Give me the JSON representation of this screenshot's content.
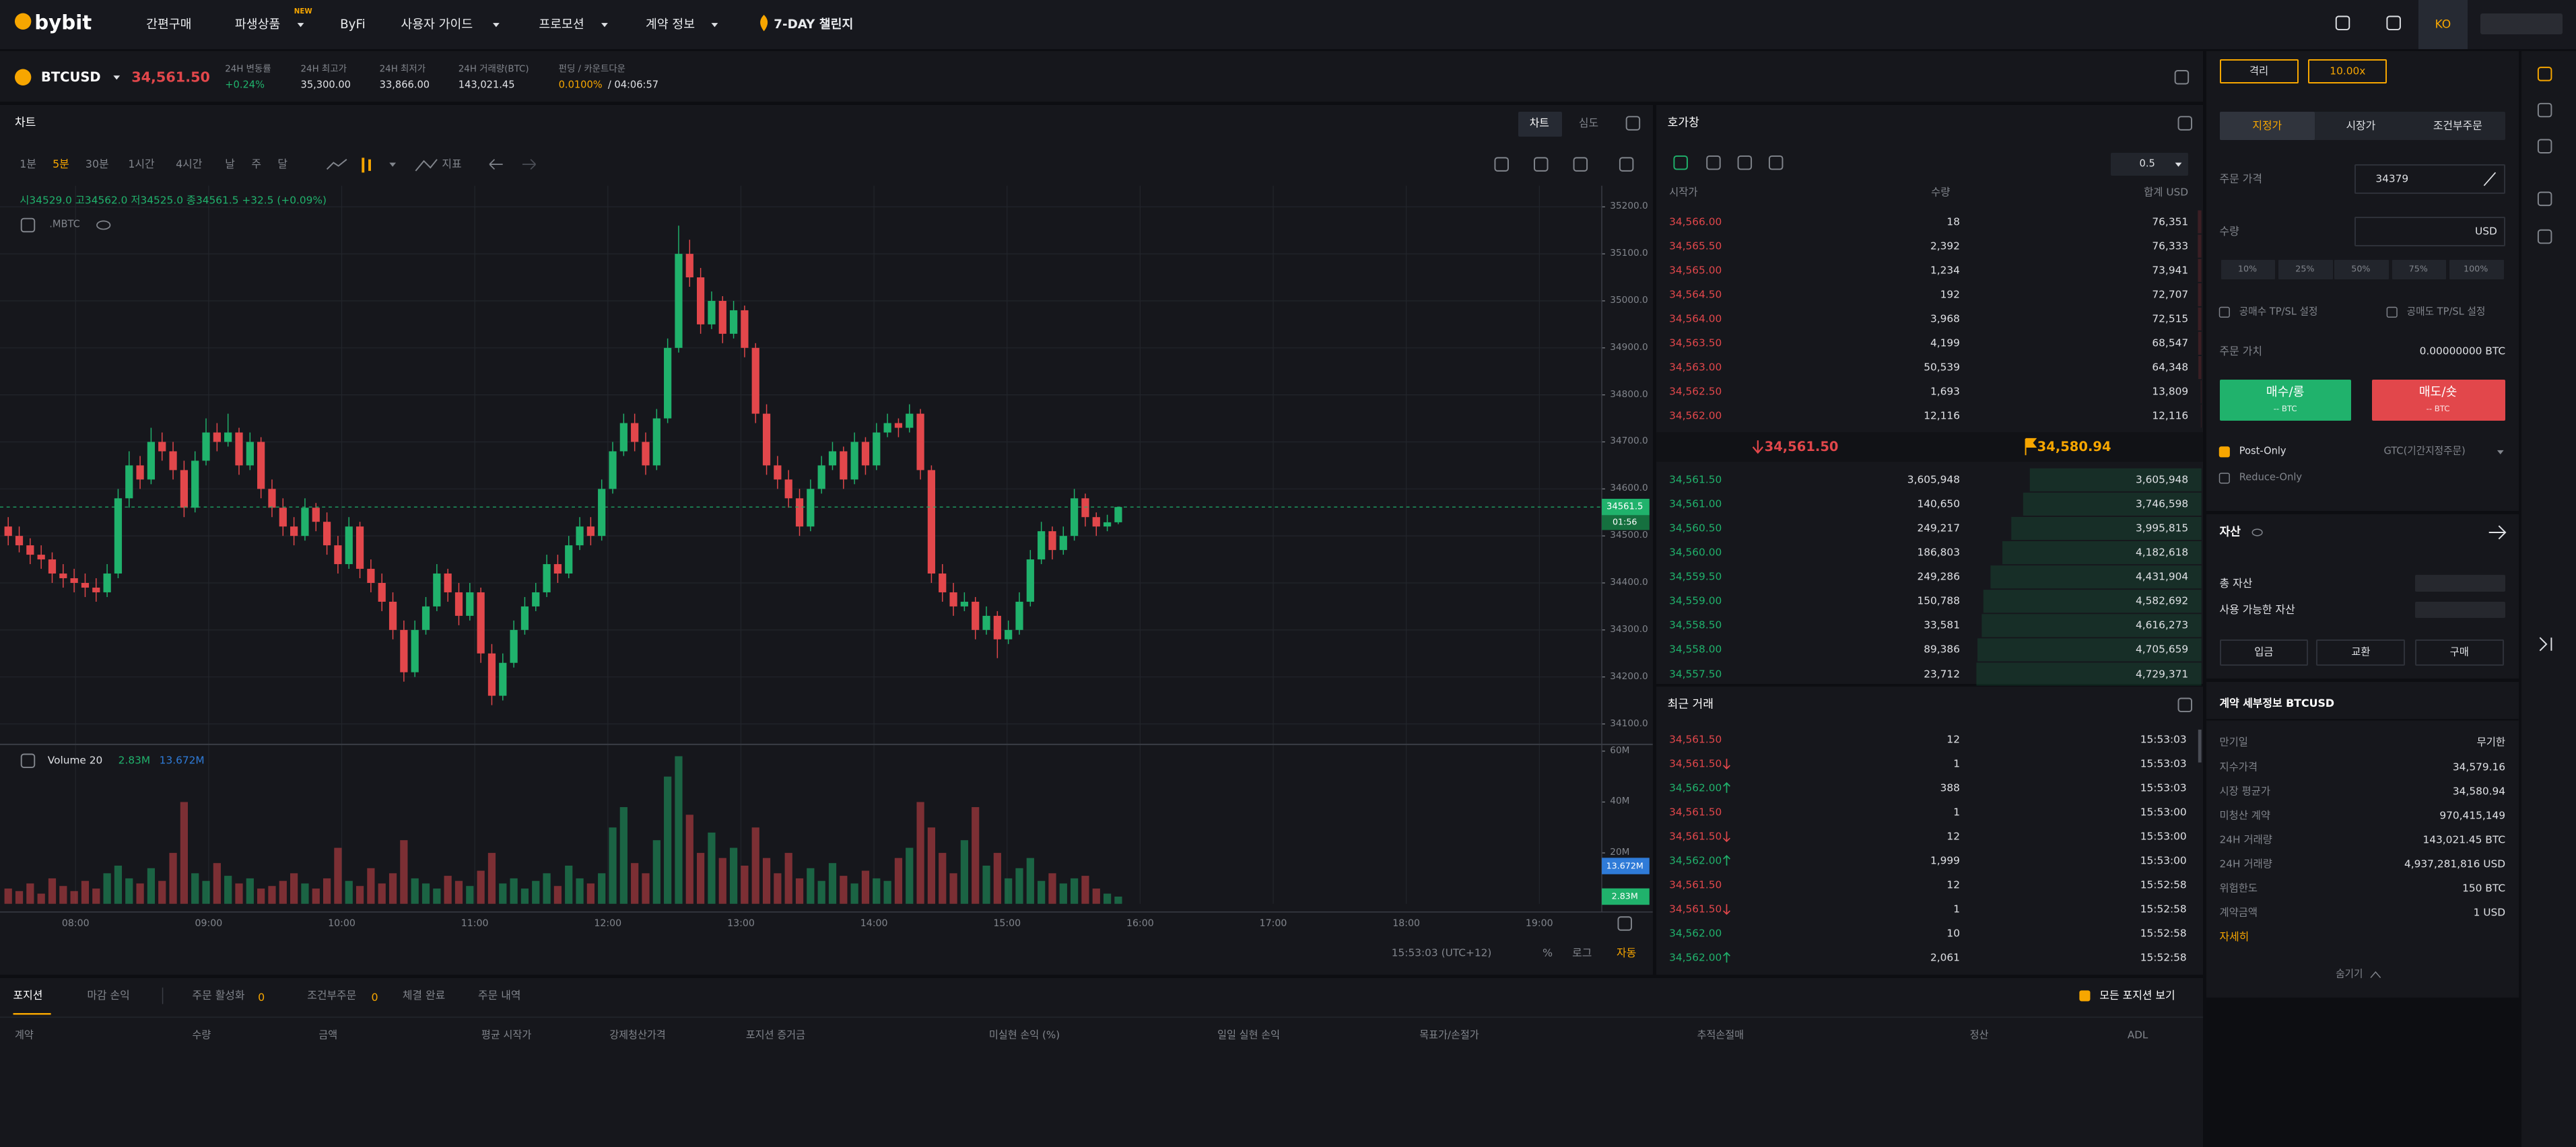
{
  "nav": {
    "logo": "bybit",
    "items": [
      "간편구매",
      "파생상품",
      "ByFi",
      "사용자 가이드",
      "프로모션",
      "계약 정보",
      "7-DAY 챌린지"
    ],
    "badge": "NEW",
    "language": "KO"
  },
  "ticker": {
    "symbol": "BTCUSD",
    "price": "34,561.50",
    "stats": [
      {
        "label": "24H 변동률",
        "value": "+0.24%"
      },
      {
        "label": "24H 최고가",
        "value": "35,300.00"
      },
      {
        "label": "24H 최저가",
        "value": "33,866.00"
      },
      {
        "label": "24H 거래량(BTC)",
        "value": "143,021.45"
      },
      {
        "label": "펀딩 / 카운트다운",
        "value": "0.0100%",
        "value2": "/ 04:06:57"
      }
    ]
  },
  "chart_panel": {
    "title": "차트",
    "tabs": [
      "차트",
      "심도"
    ],
    "intervals": [
      "1분",
      "5분",
      "30분",
      "1시간",
      "4시간",
      "날",
      "주",
      "달"
    ],
    "indicator": "지표",
    "time": "15:53:03 (UTC+12)",
    "scale_options": [
      "%",
      "로그",
      "자동"
    ]
  },
  "chart_data": {
    "type": "candlestick",
    "legend": "시34529.0 고34562.0 저34525.0 종34561.5 +32.5 (+0.09%)",
    "series_label": ".MBTC",
    "up_color": "#20b26c",
    "down_color": "#e2474b",
    "grid": true,
    "candles": [
      [
        34520,
        34540,
        34480,
        34500
      ],
      [
        34500,
        34520,
        34465,
        34480
      ],
      [
        34480,
        34495,
        34440,
        34460
      ],
      [
        34460,
        34480,
        34430,
        34450
      ],
      [
        34450,
        34465,
        34400,
        34420
      ],
      [
        34420,
        34440,
        34390,
        34410
      ],
      [
        34410,
        34430,
        34380,
        34400
      ],
      [
        34400,
        34420,
        34370,
        34390
      ],
      [
        34390,
        34410,
        34360,
        34380
      ],
      [
        34380,
        34440,
        34370,
        34420
      ],
      [
        34420,
        34600,
        34410,
        34580
      ],
      [
        34580,
        34680,
        34560,
        34650
      ],
      [
        34650,
        34670,
        34600,
        34620
      ],
      [
        34620,
        34730,
        34610,
        34700
      ],
      [
        34700,
        34720,
        34660,
        34680
      ],
      [
        34680,
        34700,
        34620,
        34640
      ],
      [
        34640,
        34660,
        34540,
        34560
      ],
      [
        34560,
        34680,
        34550,
        34660
      ],
      [
        34660,
        34750,
        34650,
        34720
      ],
      [
        34720,
        34740,
        34680,
        34700
      ],
      [
        34700,
        34760,
        34690,
        34720
      ],
      [
        34720,
        34730,
        34630,
        34650
      ],
      [
        34650,
        34720,
        34640,
        34700
      ],
      [
        34700,
        34710,
        34580,
        34600
      ],
      [
        34600,
        34620,
        34540,
        34560
      ],
      [
        34560,
        34580,
        34500,
        34520
      ],
      [
        34520,
        34540,
        34480,
        34500
      ],
      [
        34500,
        34580,
        34490,
        34560
      ],
      [
        34560,
        34570,
        34510,
        34530
      ],
      [
        34530,
        34550,
        34460,
        34480
      ],
      [
        34480,
        34500,
        34420,
        34440
      ],
      [
        34440,
        34540,
        34430,
        34520
      ],
      [
        34520,
        34530,
        34410,
        34430
      ],
      [
        34430,
        34450,
        34380,
        34400
      ],
      [
        34400,
        34420,
        34340,
        34360
      ],
      [
        34360,
        34380,
        34280,
        34300
      ],
      [
        34300,
        34320,
        34190,
        34210
      ],
      [
        34210,
        34320,
        34200,
        34300
      ],
      [
        34300,
        34370,
        34290,
        34350
      ],
      [
        34350,
        34440,
        34340,
        34420
      ],
      [
        34420,
        34430,
        34360,
        34380
      ],
      [
        34380,
        34400,
        34310,
        34330
      ],
      [
        34330,
        34400,
        34320,
        34380
      ],
      [
        34380,
        34390,
        34230,
        34250
      ],
      [
        34250,
        34270,
        34140,
        34160
      ],
      [
        34160,
        34250,
        34150,
        34230
      ],
      [
        34230,
        34320,
        34220,
        34300
      ],
      [
        34300,
        34370,
        34290,
        34350
      ],
      [
        34350,
        34400,
        34340,
        34380
      ],
      [
        34380,
        34460,
        34370,
        34440
      ],
      [
        34440,
        34460,
        34400,
        34420
      ],
      [
        34420,
        34500,
        34410,
        34480
      ],
      [
        34480,
        34540,
        34470,
        34520
      ],
      [
        34520,
        34540,
        34480,
        34500
      ],
      [
        34500,
        34620,
        34490,
        34600
      ],
      [
        34600,
        34700,
        34590,
        34680
      ],
      [
        34680,
        34760,
        34670,
        34740
      ],
      [
        34740,
        34760,
        34680,
        34700
      ],
      [
        34700,
        34720,
        34630,
        34650
      ],
      [
        34650,
        34770,
        34640,
        34750
      ],
      [
        34750,
        34920,
        34740,
        34900
      ],
      [
        34900,
        35160,
        34890,
        35100
      ],
      [
        35100,
        35130,
        35030,
        35050
      ],
      [
        35050,
        35070,
        34930,
        34950
      ],
      [
        34950,
        35020,
        34940,
        35000
      ],
      [
        35000,
        35010,
        34910,
        34930
      ],
      [
        34930,
        35000,
        34920,
        34980
      ],
      [
        34980,
        34990,
        34880,
        34900
      ],
      [
        34900,
        34910,
        34740,
        34760
      ],
      [
        34760,
        34780,
        34630,
        34650
      ],
      [
        34650,
        34670,
        34600,
        34620
      ],
      [
        34620,
        34640,
        34560,
        34580
      ],
      [
        34580,
        34600,
        34500,
        34520
      ],
      [
        34520,
        34620,
        34510,
        34600
      ],
      [
        34600,
        34670,
        34590,
        34650
      ],
      [
        34650,
        34700,
        34640,
        34680
      ],
      [
        34680,
        34690,
        34600,
        34620
      ],
      [
        34620,
        34720,
        34610,
        34700
      ],
      [
        34700,
        34710,
        34630,
        34650
      ],
      [
        34650,
        34740,
        34640,
        34720
      ],
      [
        34720,
        34760,
        34710,
        34740
      ],
      [
        34740,
        34750,
        34710,
        34730
      ],
      [
        34730,
        34780,
        34720,
        34760
      ],
      [
        34760,
        34770,
        34620,
        34640
      ],
      [
        34640,
        34650,
        34400,
        34420
      ],
      [
        34420,
        34440,
        34360,
        34380
      ],
      [
        34380,
        34400,
        34330,
        34350
      ],
      [
        34350,
        34380,
        34340,
        34360
      ],
      [
        34360,
        34370,
        34280,
        34300
      ],
      [
        34300,
        34350,
        34290,
        34330
      ],
      [
        34330,
        34340,
        34240,
        34280
      ],
      [
        34280,
        34320,
        34270,
        34300
      ],
      [
        34300,
        34380,
        34290,
        34360
      ],
      [
        34360,
        34470,
        34350,
        34450
      ],
      [
        34450,
        34530,
        34440,
        34510
      ],
      [
        34510,
        34520,
        34450,
        34470
      ],
      [
        34470,
        34520,
        34460,
        34500
      ],
      [
        34500,
        34600,
        34490,
        34580
      ],
      [
        34580,
        34590,
        34520,
        34540
      ],
      [
        34540,
        34550,
        34500,
        34520
      ],
      [
        34520,
        34545,
        34510,
        34529
      ],
      [
        34529,
        34562,
        34525,
        34561.5
      ]
    ],
    "ylim": [
      34060,
      35245
    ],
    "yticks": [
      {
        "value": 35200,
        "label": "35200.0"
      },
      {
        "value": 35100,
        "label": "35100.0"
      },
      {
        "value": 35000,
        "label": "35000.0"
      },
      {
        "value": 34900,
        "label": "34900.0"
      },
      {
        "value": 34800,
        "label": "34800.0"
      },
      {
        "value": 34700,
        "label": "34700.0"
      },
      {
        "value": 34600,
        "label": "34600.0"
      },
      {
        "value": 34500,
        "label": "34500.0"
      },
      {
        "value": 34400,
        "label": "34400.0"
      },
      {
        "value": 34300,
        "label": "34300.0"
      },
      {
        "value": 34200,
        "label": "34200.0"
      },
      {
        "value": 34100,
        "label": "34100.0"
      }
    ],
    "xticks": [
      "08:00",
      "09:00",
      "10:00",
      "11:00",
      "12:00",
      "13:00",
      "14:00",
      "15:00",
      "16:00",
      "17:00",
      "18:00",
      "19:00"
    ],
    "price_tag": "34561.5",
    "countdown": "01:56",
    "volume": {
      "legend": "Volume 20",
      "value_label": "2.83M",
      "ma_label": "13.672M",
      "ma_color": "#2f7bd8",
      "values": [
        6,
        5,
        8,
        4,
        10,
        7,
        5,
        9,
        6,
        12,
        15,
        10,
        8,
        14,
        9,
        20,
        40,
        12,
        9,
        16,
        11,
        8,
        10,
        6,
        7,
        9,
        12,
        8,
        6,
        10,
        22,
        9,
        7,
        14,
        8,
        12,
        25,
        10,
        8,
        6,
        11,
        9,
        7,
        13,
        20,
        8,
        10,
        6,
        9,
        12,
        7,
        15,
        10,
        8,
        12,
        30,
        38,
        16,
        12,
        25,
        50,
        58,
        35,
        20,
        28,
        18,
        22,
        15,
        30,
        18,
        12,
        20,
        10,
        14,
        9,
        16,
        11,
        8,
        13,
        10,
        9,
        18,
        22,
        40,
        30,
        20,
        12,
        25,
        38,
        15,
        20,
        10,
        14,
        18,
        9,
        12,
        8,
        10,
        11,
        6,
        4,
        2.83
      ],
      "ylim": [
        0,
        62
      ],
      "yticks": [
        {
          "value": 60,
          "label": "60M"
        },
        {
          "value": 40,
          "label": "40M"
        },
        {
          "value": 20,
          "label": "20M"
        }
      ]
    }
  },
  "order_book": {
    "title": "호가창",
    "step": "0.5",
    "headers": [
      "시작가",
      "수량",
      "합계 USD"
    ],
    "asks": [
      [
        "34,566.00",
        "18",
        "76,351"
      ],
      [
        "34,565.50",
        "2,392",
        "76,333"
      ],
      [
        "34,565.00",
        "1,234",
        "73,941"
      ],
      [
        "34,564.50",
        "192",
        "72,707"
      ],
      [
        "34,564.00",
        "3,968",
        "72,515"
      ],
      [
        "34,563.50",
        "4,199",
        "68,547"
      ],
      [
        "34,563.00",
        "50,539",
        "64,348"
      ],
      [
        "34,562.50",
        "1,693",
        "13,809"
      ],
      [
        "34,562.00",
        "12,116",
        "12,116"
      ]
    ],
    "bids": [
      [
        "34,561.50",
        "3,605,948",
        "3,605,948"
      ],
      [
        "34,561.00",
        "140,650",
        "3,746,598"
      ],
      [
        "34,560.50",
        "249,217",
        "3,995,815"
      ],
      [
        "34,560.00",
        "186,803",
        "4,182,618"
      ],
      [
        "34,559.50",
        "249,286",
        "4,431,904"
      ],
      [
        "34,559.00",
        "150,788",
        "4,582,692"
      ],
      [
        "34,558.50",
        "33,581",
        "4,616,273"
      ],
      [
        "34,558.00",
        "89,386",
        "4,705,659"
      ],
      [
        "34,557.50",
        "23,712",
        "4,729,371"
      ]
    ],
    "last_price": "34,561.50",
    "mark_price": "34,580.94"
  },
  "recent_trades": {
    "title": "최근 거래",
    "rows": [
      {
        "price": "34,561.50",
        "qty": "12",
        "time": "15:53:03",
        "side": "sell",
        "arrow": "none"
      },
      {
        "price": "34,561.50",
        "qty": "1",
        "time": "15:53:03",
        "side": "sell",
        "arrow": "down"
      },
      {
        "price": "34,562.00",
        "qty": "388",
        "time": "15:53:03",
        "side": "buy",
        "arrow": "up"
      },
      {
        "price": "34,561.50",
        "qty": "1",
        "time": "15:53:00",
        "side": "sell",
        "arrow": "none"
      },
      {
        "price": "34,561.50",
        "qty": "12",
        "time": "15:53:00",
        "side": "sell",
        "arrow": "down"
      },
      {
        "price": "34,562.00",
        "qty": "1,999",
        "time": "15:53:00",
        "side": "buy",
        "arrow": "up"
      },
      {
        "price": "34,561.50",
        "qty": "12",
        "time": "15:52:58",
        "side": "sell",
        "arrow": "none"
      },
      {
        "price": "34,561.50",
        "qty": "1",
        "time": "15:52:58",
        "side": "sell",
        "arrow": "down"
      },
      {
        "price": "34,562.00",
        "qty": "10",
        "time": "15:52:58",
        "side": "buy",
        "arrow": "none"
      },
      {
        "price": "34,562.00",
        "qty": "2,061",
        "time": "15:52:58",
        "side": "buy",
        "arrow": "up"
      }
    ]
  },
  "positions": {
    "tabs": [
      {
        "label": "포지션"
      },
      {
        "label": "마감 손익"
      },
      {
        "label": "주문 활성화",
        "count": 0
      },
      {
        "label": "조건부주문",
        "count": 0
      },
      {
        "label": "체결 완료"
      },
      {
        "label": "주문 내역"
      }
    ],
    "show_all": "모든 포지션 보기",
    "columns": [
      "계약",
      "수량",
      "금액",
      "평균 시작가",
      "강제청산가격",
      "포지션 증거금",
      "미실현 손익 (%)",
      "일일 실현 손익",
      "목표가/손절가",
      "추적손절매",
      "정산",
      "ADL"
    ]
  },
  "order_form": {
    "margin_mode": "격리",
    "leverage": "10.00x",
    "tabs": [
      "지정가",
      "시장가",
      "조건부주문"
    ],
    "price_label": "주문 가격",
    "price": "34379",
    "qty_label": "수량",
    "qty_unit": "USD",
    "percents": [
      "10%",
      "25%",
      "50%",
      "75%",
      "100%"
    ],
    "tpsl": [
      "공매수 TP/SL 설정",
      "공매도 TP/SL 설정"
    ],
    "value_label": "주문 가치",
    "value": "0.00000000 BTC",
    "buy": "매수/롱",
    "buy_sub": "-- BTC",
    "sell": "매도/숏",
    "sell_sub": "-- BTC",
    "post_only": "Post-Only",
    "tif": "GTC(기간지정주문)",
    "reduce_only": "Reduce-Only"
  },
  "assets": {
    "title": "자산",
    "rows": [
      "총 자산",
      "사용 가능한 자산"
    ],
    "buttons": [
      "입금",
      "교환",
      "구매"
    ]
  },
  "contract": {
    "title": "계약 세부정보 BTCUSD",
    "rows": [
      [
        "만기일",
        "무기한"
      ],
      [
        "지수가격",
        "34,579.16"
      ],
      [
        "시장 평균가",
        "34,580.94"
      ],
      [
        "미청산 계약",
        "970,415,149"
      ],
      [
        "24H 거래량",
        "143,021.45 BTC"
      ],
      [
        "24H 거래량",
        "4,937,281,816 USD"
      ],
      [
        "위험한도",
        "150 BTC"
      ],
      [
        "계약금액",
        "1 USD"
      ]
    ],
    "more": "자세히",
    "hide": "숨기기"
  }
}
